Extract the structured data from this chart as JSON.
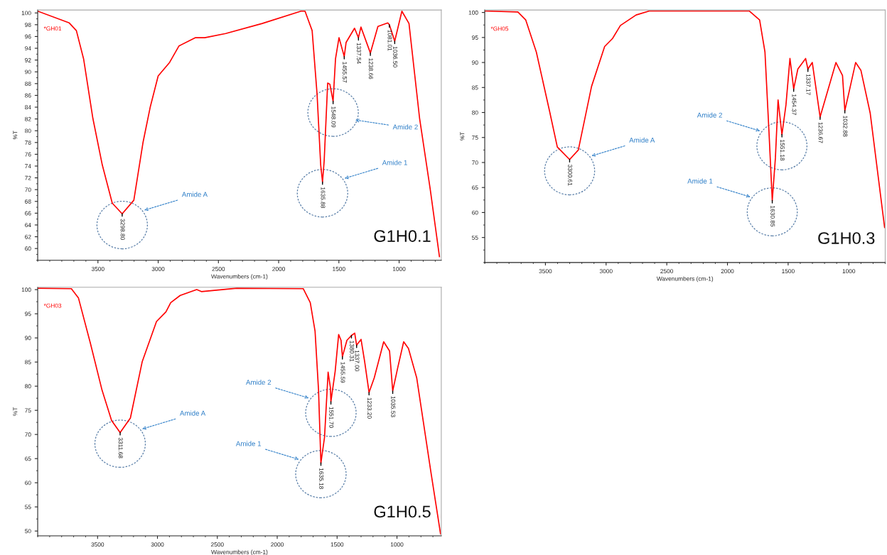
{
  "chart_data": [
    {
      "type": "line",
      "title": "G1H0.1",
      "xlabel": "Wavenumbers (cm-1)",
      "ylabel": "%T",
      "legend": "top left",
      "xlim": [
        4000,
        650
      ],
      "xticks": [
        3500,
        3000,
        2500,
        2000,
        1500,
        1000
      ],
      "ylim": [
        58,
        100.5
      ],
      "yticks": [
        60,
        62,
        64,
        66,
        68,
        70,
        72,
        74,
        76,
        78,
        80,
        82,
        84,
        86,
        88,
        90,
        92,
        94,
        96,
        98,
        100
      ],
      "series": [
        {
          "name": "*GH01",
          "color": "#ff0000",
          "x": [
            4000,
            3738,
            3679,
            3619,
            3542,
            3464,
            3381,
            3298.8,
            3202,
            3125,
            3065,
            3000,
            2905,
            2827,
            2690,
            2613,
            2440,
            2137,
            1815,
            1781,
            1722,
            1681,
            1651,
            1635.88,
            1622,
            1593,
            1575,
            1548.09,
            1528,
            1499,
            1455.57,
            1440,
            1370,
            1337.54,
            1317,
            1238.66,
            1176,
            1094,
            1081.01,
            1036.5,
            977,
            918,
            830,
            742,
            665
          ],
          "values": [
            100.3,
            98.3,
            97.0,
            92.2,
            82.1,
            74.2,
            67.7,
            65.9,
            68.2,
            78.1,
            84.1,
            89.3,
            91.6,
            94.4,
            95.8,
            95.8,
            96.5,
            98.2,
            100.3,
            100.3,
            97.0,
            86.2,
            74.2,
            71.3,
            74.9,
            88.1,
            87.9,
            85.0,
            92.2,
            95.8,
            92.6,
            95.0,
            97.4,
            95.8,
            97.6,
            93.2,
            97.7,
            98.3,
            98.0,
            95.2,
            100.3,
            98.2,
            82.1,
            70.1,
            58.6
          ]
        }
      ],
      "annotations": [
        "Amide A",
        "Amide 1",
        "Amide 2",
        {
          "text": "3298.80",
          "x": 3298.8,
          "y": 65.9
        },
        {
          "text": "1635.88",
          "x": 1635.88,
          "y": 71.3
        },
        {
          "text": "1548.09",
          "x": 1548.09,
          "y": 85.0
        },
        {
          "text": "1455.57",
          "x": 1455.57,
          "y": 92.6
        },
        {
          "text": "1337.54",
          "x": 1337.54,
          "y": 95.8
        },
        {
          "text": "1238.66",
          "x": 1238.66,
          "y": 93.2
        },
        {
          "text": "1081.01",
          "x": 1081.01,
          "y": 98.0
        },
        {
          "text": "1036.50",
          "x": 1036.5,
          "y": 95.2
        }
      ]
    },
    {
      "type": "line",
      "title": "G1H0.3",
      "xlabel": "Wavenumbers (cm-1)",
      "ylabel": "%T",
      "legend": "top left",
      "xlim": [
        4000,
        700
      ],
      "xticks": [
        3500,
        3000,
        2500,
        2000,
        1500,
        1000
      ],
      "ylim": [
        50,
        100.5
      ],
      "yticks": [
        55,
        60,
        65,
        70,
        75,
        80,
        85,
        90,
        95,
        100
      ],
      "series": [
        {
          "name": "*GH05",
          "color": "#ff0000",
          "x": [
            4000,
            3727,
            3662,
            3575,
            3467,
            3402,
            3300.61,
            3229,
            3120,
            3012,
            2947,
            2882,
            2753,
            2644,
            1821,
            1735,
            1691,
            1658,
            1630.85,
            1605,
            1583,
            1551.18,
            1518,
            1485,
            1454.37,
            1420,
            1356,
            1337.17,
            1301,
            1236.67,
            1106,
            1052,
            1032.88,
            998,
            944,
            900,
            824,
            705
          ],
          "values": [
            100.3,
            100.1,
            98.5,
            92.1,
            80.4,
            73.1,
            70.6,
            72.5,
            85.2,
            93.2,
            94.8,
            97.4,
            99.5,
            100.3,
            100.3,
            98.5,
            92.1,
            76.2,
            62.4,
            70.9,
            82.5,
            75.6,
            81.5,
            90.8,
            84.7,
            88.7,
            90.8,
            88.7,
            90.0,
            79.1,
            90.0,
            87.4,
            80.4,
            84.1,
            90.0,
            88.4,
            79.9,
            57.0
          ]
        }
      ],
      "annotations": [
        "Amide A",
        "Amide 1",
        "Amide 2",
        {
          "text": "3300.61",
          "x": 3300.61,
          "y": 70.6
        },
        {
          "text": "1630.85",
          "x": 1630.85,
          "y": 62.4
        },
        {
          "text": "1551.18",
          "x": 1551.18,
          "y": 75.6
        },
        {
          "text": "1454.37",
          "x": 1454.37,
          "y": 84.7
        },
        {
          "text": "1337.17",
          "x": 1337.17,
          "y": 88.7
        },
        {
          "text": "1236.67",
          "x": 1236.67,
          "y": 79.1
        },
        {
          "text": "1032.88",
          "x": 1032.88,
          "y": 80.4
        }
      ]
    },
    {
      "type": "line",
      "title": "G1H0.5",
      "xlabel": "Wavenumbers (cm-1)",
      "ylabel": "%T",
      "legend": "top left",
      "xlim": [
        4000,
        630
      ],
      "xticks": [
        3500,
        3000,
        2500,
        2000,
        1500,
        1000
      ],
      "ylim": [
        49,
        100.5
      ],
      "yticks": [
        50,
        55,
        60,
        65,
        70,
        75,
        80,
        85,
        90,
        95,
        100
      ],
      "series": [
        {
          "name": "*GH03",
          "color": "#ff0000",
          "x": [
            4000,
            3719,
            3660,
            3561,
            3463,
            3383,
            3311.68,
            3226,
            3127,
            3008,
            2929,
            2889,
            2810,
            2672,
            2633,
            2338,
            1783,
            1724,
            1684,
            1655,
            1635.18,
            1605,
            1575,
            1556,
            1551.7,
            1516,
            1487,
            1467,
            1455.59,
            1418,
            1380.31,
            1353,
            1337.0,
            1300,
            1270,
            1233.2,
            1190,
            1111,
            1062,
            1035.53,
            993,
            944,
            904,
            835,
            716,
            636
          ],
          "values": [
            100.3,
            100.2,
            98.3,
            89.0,
            79.2,
            72.9,
            70.4,
            73.4,
            85.1,
            93.4,
            95.4,
            97.3,
            98.8,
            100.0,
            99.6,
            100.3,
            100.2,
            97.3,
            91.4,
            79.2,
            64.1,
            69.4,
            82.9,
            79.7,
            76.8,
            83.1,
            90.7,
            89.5,
            86.1,
            89.5,
            90.5,
            91.0,
            88.5,
            89.7,
            85.1,
            78.7,
            81.7,
            89.2,
            87.3,
            79.0,
            83.9,
            89.2,
            87.8,
            81.7,
            62.1,
            49.4
          ]
        }
      ],
      "annotations": [
        "Amide A",
        "Amide 1",
        "Amide 2",
        {
          "text": "3311.68",
          "x": 3311.68,
          "y": 70.4
        },
        {
          "text": "1635.18",
          "x": 1635.18,
          "y": 64.1
        },
        {
          "text": "1551.70",
          "x": 1551.7,
          "y": 76.8
        },
        {
          "text": "1455.59",
          "x": 1455.59,
          "y": 86.1
        },
        {
          "text": "1380.31",
          "x": 1380.31,
          "y": 90.5
        },
        {
          "text": "1337.00",
          "x": 1337.0,
          "y": 88.5
        },
        {
          "text": "1233.20",
          "x": 1233.2,
          "y": 78.7
        },
        {
          "text": "1035.53",
          "x": 1035.53,
          "y": 79.0
        }
      ]
    }
  ]
}
